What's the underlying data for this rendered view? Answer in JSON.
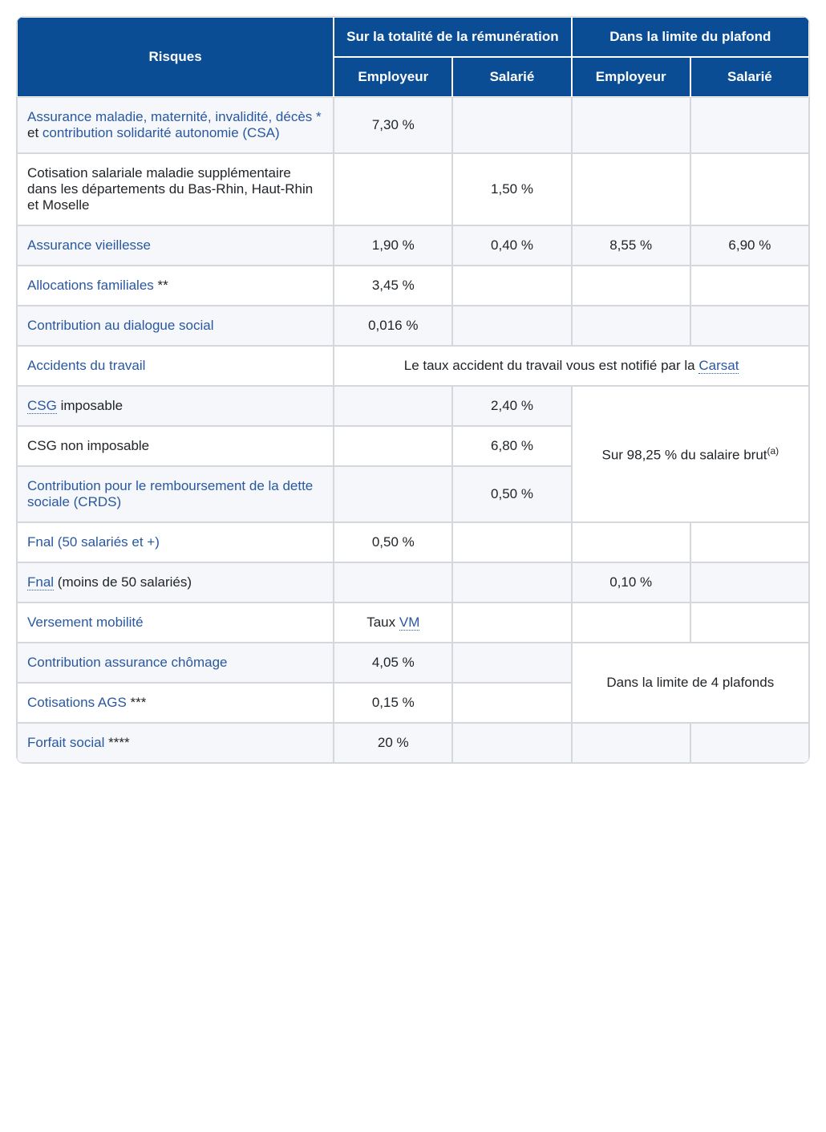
{
  "header": {
    "risques": "Risques",
    "totalite": "Sur la totalité de la rémunération",
    "plafond": "Dans la limite du plafond",
    "employeur": "Employeur",
    "salarie": "Salarié"
  },
  "rows": {
    "r1": {
      "label_part1": "Assurance maladie, maternité, invalidité, décès *",
      "label_et": " et ",
      "label_part2": "contribution solidarité autonomie (CSA)",
      "v1": "7,30 %"
    },
    "r2": {
      "label": "Cotisation salariale maladie supplémentaire dans les départements du Bas-Rhin, Haut-Rhin et Moselle",
      "v2": "1,50 %"
    },
    "r3": {
      "label": "Assurance vieillesse",
      "v1": "1,90 %",
      "v2": "0,40 %",
      "v3": "8,55 %",
      "v4": "6,90 %"
    },
    "r4": {
      "label": "Allocations familiales",
      "suffix": " **",
      "v1": "3,45 %"
    },
    "r5": {
      "label": "Contribution au dialogue social",
      "v1": "0,016 %"
    },
    "r6": {
      "label": "Accidents du travail",
      "note_prefix": "Le taux accident du travail vous est notifié par la ",
      "note_link": "Carsat"
    },
    "r7": {
      "label_abbr": "CSG",
      "label_rest": " imposable",
      "v2": "2,40 %"
    },
    "r8": {
      "label": "CSG non imposable",
      "v2": "6,80 %"
    },
    "r9": {
      "label": "Contribution pour le remboursement de la dette sociale (CRDS)",
      "v2": "0,50 %"
    },
    "csg_note": {
      "text_prefix": "Sur 98,25 % du salaire brut",
      "sup": "(a)"
    },
    "r10": {
      "label": "Fnal (50 salariés et +)",
      "v1": "0,50 %"
    },
    "r11": {
      "label_abbr": "Fnal",
      "label_rest": " (moins de 50 salariés)",
      "v3": "0,10 %"
    },
    "r12": {
      "label": "Versement mobilité",
      "v1_prefix": "Taux ",
      "v1_link": "VM"
    },
    "r13": {
      "label": "Contribution assurance chômage",
      "v1": "4,05 %"
    },
    "r14": {
      "label": "Cotisations AGS",
      "suffix": " ***",
      "v1": "0,15 %"
    },
    "chomage_note": "Dans la limite de 4 plafonds",
    "r15": {
      "label": "Forfait social",
      "suffix": " ****",
      "v1": "20 %"
    }
  },
  "colors": {
    "header_bg": "#0a4d94",
    "link": "#2958a0",
    "border": "#d4d7db",
    "alt_row": "#f5f7fa"
  }
}
